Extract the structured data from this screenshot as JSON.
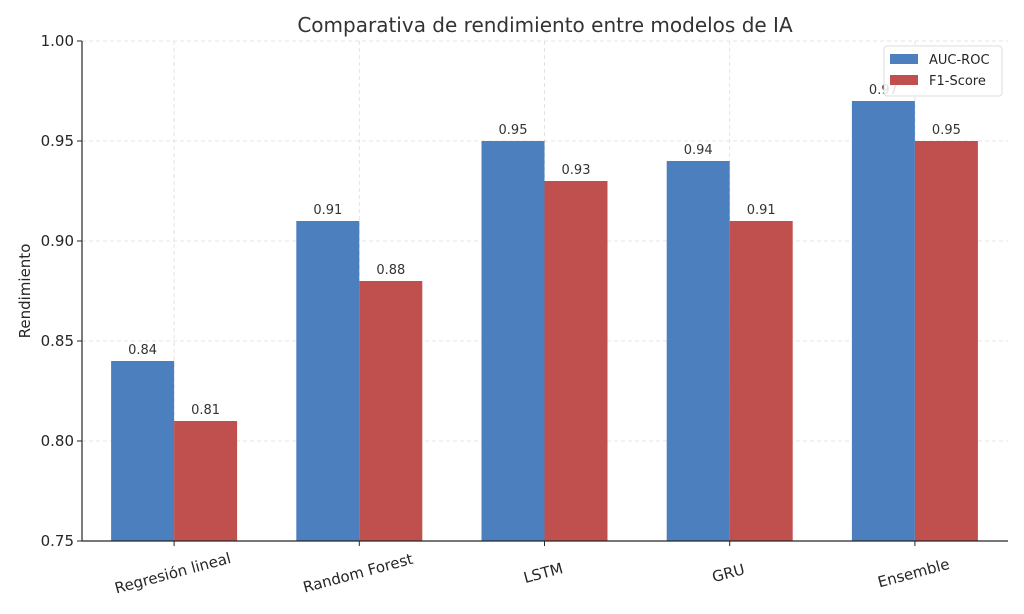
{
  "chart_data": {
    "type": "bar",
    "title": "Comparativa de rendimiento entre modelos de IA",
    "xlabel": "",
    "ylabel": "Rendimiento",
    "ylim": [
      0.75,
      1.0
    ],
    "yticks": [
      "0.75",
      "0.80",
      "0.85",
      "0.90",
      "0.95",
      "1.00"
    ],
    "categories": [
      "Regresión lineal",
      "Random Forest",
      "LSTM",
      "GRU",
      "Ensemble"
    ],
    "series": [
      {
        "name": "AUC-ROC",
        "color": "#4c7fbd",
        "values": [
          0.84,
          0.91,
          0.95,
          0.94,
          0.97
        ],
        "labels": [
          "0.84",
          "0.91",
          "0.95",
          "0.94",
          "0.97"
        ]
      },
      {
        "name": "F1-Score",
        "color": "#c0504d",
        "values": [
          0.81,
          0.88,
          0.93,
          0.91,
          0.95
        ],
        "labels": [
          "0.81",
          "0.88",
          "0.93",
          "0.91",
          "0.95"
        ]
      }
    ],
    "grid": true,
    "legend_position": "upper right"
  }
}
